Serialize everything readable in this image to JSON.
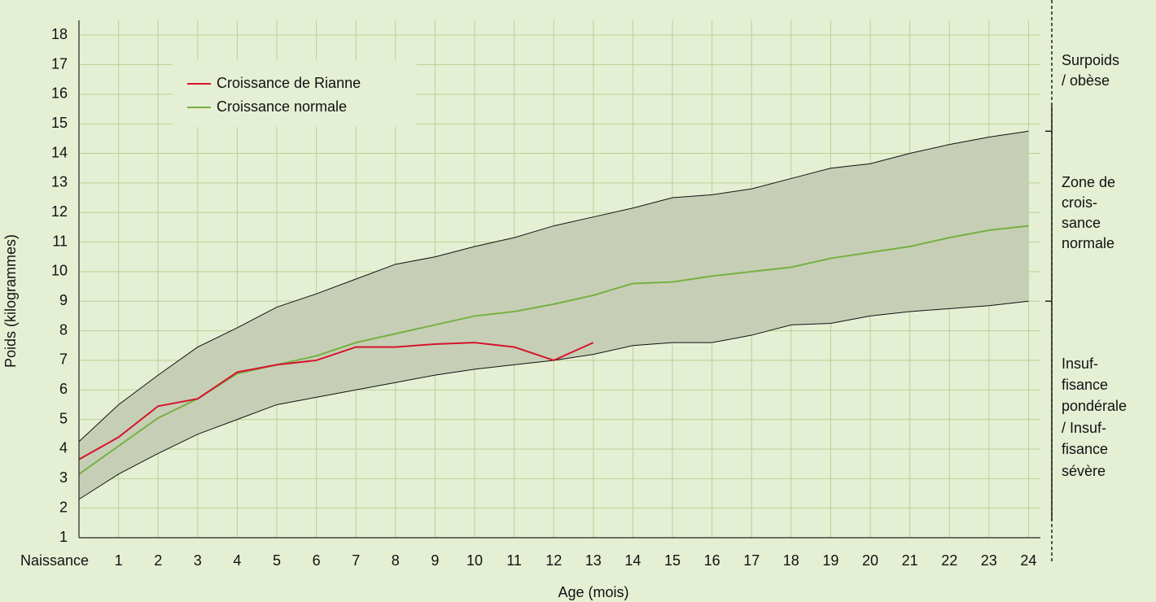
{
  "chart_data": {
    "type": "line",
    "xlabel": "Age (mois)",
    "ylabel": "Poids (kilogrammes)",
    "x": [
      0,
      1,
      2,
      3,
      4,
      5,
      6,
      7,
      8,
      9,
      10,
      11,
      12,
      13,
      14,
      15,
      16,
      17,
      18,
      19,
      20,
      21,
      22,
      23,
      24
    ],
    "xlim": [
      0,
      24.3
    ],
    "xticks": [
      {
        "value": 0,
        "label": "Naissance"
      },
      1,
      2,
      3,
      4,
      5,
      6,
      7,
      8,
      9,
      10,
      11,
      12,
      13,
      14,
      15,
      16,
      17,
      18,
      19,
      20,
      21,
      22,
      23,
      24
    ],
    "ylim": [
      1,
      18.5
    ],
    "yticks": [
      1,
      2,
      3,
      4,
      5,
      6,
      7,
      8,
      9,
      10,
      11,
      12,
      13,
      14,
      15,
      16,
      17,
      18
    ],
    "grid": true,
    "band": {
      "color": "#c6cfb6",
      "upper": [
        4.25,
        5.5,
        6.5,
        7.45,
        8.1,
        8.8,
        9.25,
        9.75,
        10.25,
        10.5,
        10.85,
        11.15,
        11.55,
        11.85,
        12.15,
        12.5,
        12.6,
        12.8,
        13.15,
        13.5,
        13.65,
        14,
        14.3,
        14.55,
        14.75
      ],
      "lower": [
        2.3,
        3.15,
        3.85,
        4.5,
        5,
        5.5,
        5.75,
        6,
        6.25,
        6.5,
        6.7,
        6.85,
        7,
        7.2,
        7.5,
        7.6,
        7.6,
        7.85,
        8.2,
        8.25,
        8.5,
        8.65,
        8.75,
        8.85,
        9
      ]
    },
    "series": [
      {
        "name": "Croissance de Rianne",
        "color": "#d7132b",
        "values": [
          3.65,
          4.4,
          5.45,
          5.7,
          6.6,
          6.85,
          7,
          7.45,
          7.45,
          7.55,
          7.6,
          7.45,
          7,
          7.6,
          null,
          null,
          null,
          null,
          null,
          null,
          null,
          null,
          null,
          null,
          null
        ]
      },
      {
        "name": "Croissance normale",
        "color": "#78b042",
        "values": [
          3.15,
          4.1,
          5.05,
          5.7,
          6.55,
          6.85,
          7.15,
          7.6,
          7.9,
          8.2,
          8.5,
          8.65,
          8.9,
          9.2,
          9.6,
          9.65,
          9.85,
          10,
          10.15,
          10.45,
          10.65,
          10.85,
          11.15,
          11.4,
          11.55
        ]
      }
    ],
    "zones": [
      {
        "lines": [
          "Surpoids",
          "/ obèse"
        ]
      },
      {
        "lines": [
          "Zone de",
          "crois-",
          "sance",
          "normale"
        ]
      },
      {
        "lines": [
          "Insuf-",
          "fisance",
          "pondérale",
          "/ Insuf-",
          "fisance",
          "sévère"
        ]
      }
    ]
  }
}
